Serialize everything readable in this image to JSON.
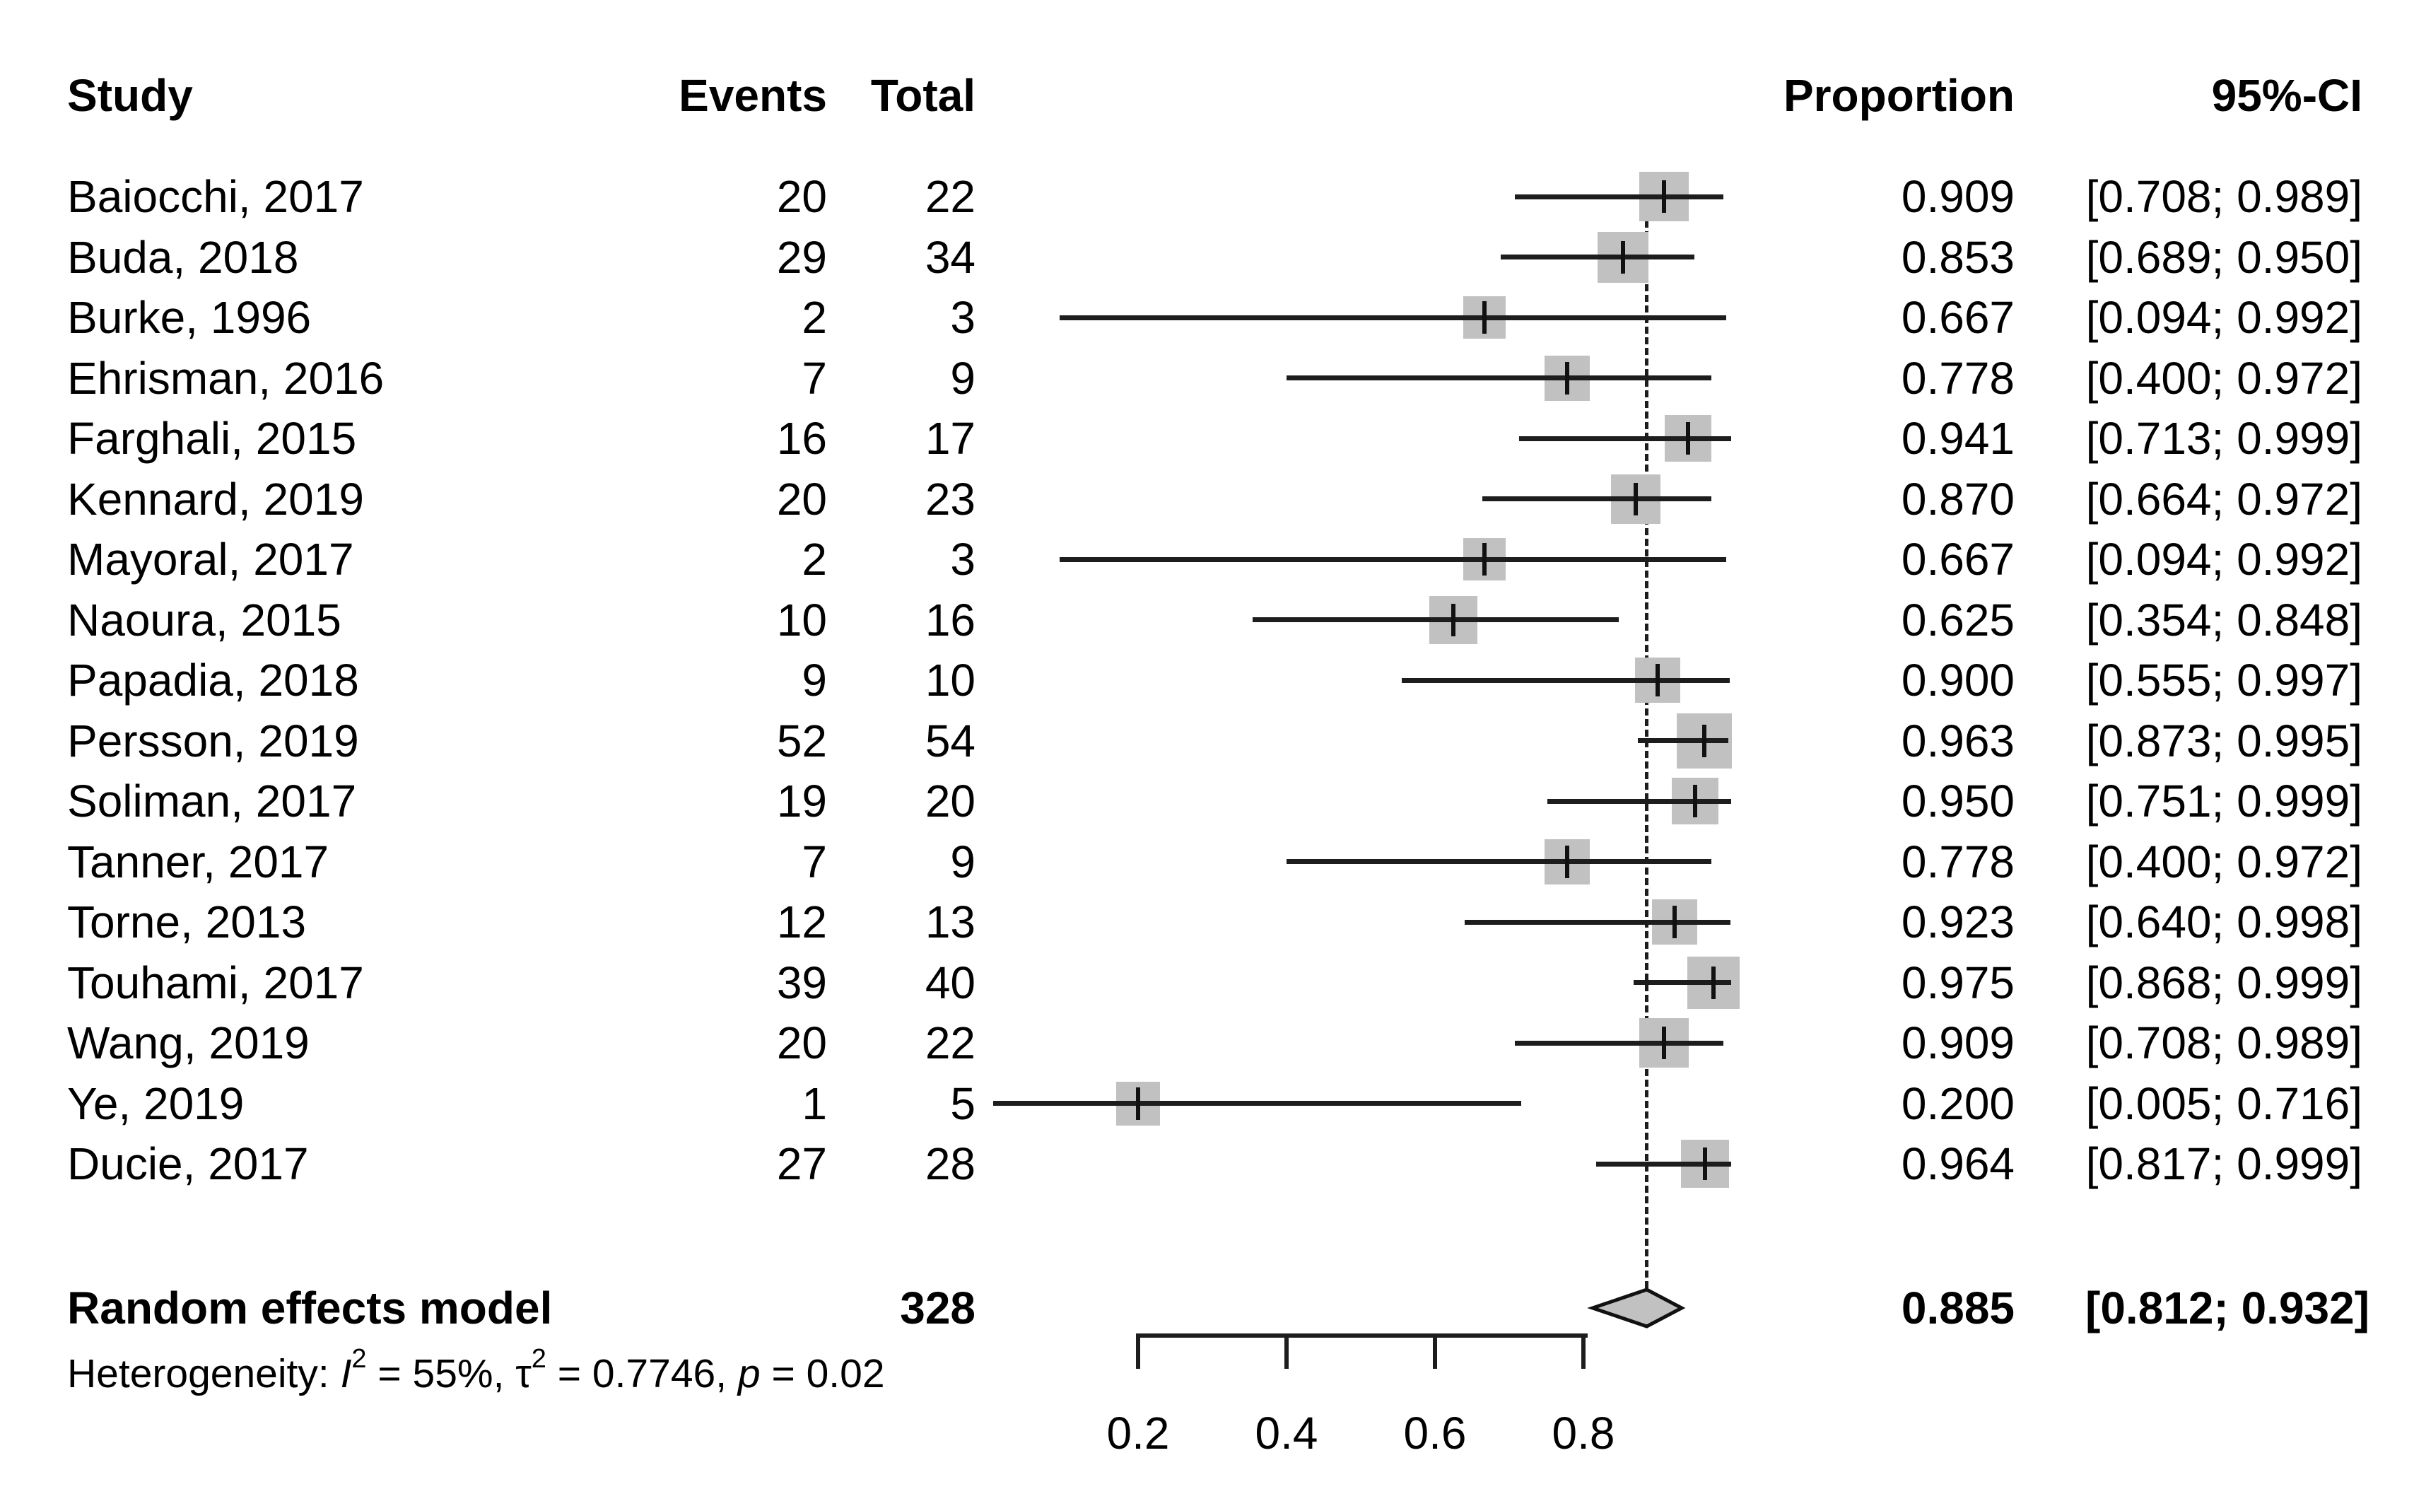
{
  "columns": {
    "study": "Study",
    "events": "Events",
    "total": "Total",
    "proportion": "Proportion",
    "ci": "95%-CI"
  },
  "heterogeneity": {
    "prefix": "Heterogeneity: ",
    "i_symbol": "I",
    "i_exp": "2",
    "i_value": " = 55%, ",
    "tau_symbol": "τ",
    "tau_exp": "2",
    "tau_value": " = 0.7746, ",
    "p_symbol": "p",
    "p_value": " = 0.02"
  },
  "chart_data": {
    "type": "forest",
    "title": "",
    "xlabel": "",
    "xlim": [
      0,
      1
    ],
    "axis": {
      "ticks": [
        0.2,
        0.4,
        0.6,
        0.8
      ],
      "labels": [
        "0.2",
        "0.4",
        "0.6",
        "0.8"
      ]
    },
    "reference_line": 0.885,
    "colors": {
      "marker_fill": "#c1c1c1",
      "line": "#1d1d1d",
      "diamond_fill": "#c1c1c1",
      "diamond_stroke": "#111111",
      "text": "#000000"
    },
    "studies": [
      {
        "name": "Baiocchi, 2017",
        "events": "20",
        "total": "22",
        "proportion": "0.909",
        "ci_text": "[0.708; 0.989]",
        "estimate": 0.909,
        "lower": 0.708,
        "upper": 0.989,
        "marker_px": 70
      },
      {
        "name": "Buda, 2018",
        "events": "29",
        "total": "34",
        "proportion": "0.853",
        "ci_text": "[0.689; 0.950]",
        "estimate": 0.853,
        "lower": 0.689,
        "upper": 0.95,
        "marker_px": 72
      },
      {
        "name": "Burke, 1996",
        "events": "2",
        "total": "3",
        "proportion": "0.667",
        "ci_text": "[0.094; 0.992]",
        "estimate": 0.667,
        "lower": 0.094,
        "upper": 0.992,
        "marker_px": 60
      },
      {
        "name": "Ehrisman, 2016",
        "events": "7",
        "total": "9",
        "proportion": "0.778",
        "ci_text": "[0.400; 0.972]",
        "estimate": 0.778,
        "lower": 0.4,
        "upper": 0.972,
        "marker_px": 64
      },
      {
        "name": "Farghali, 2015",
        "events": "16",
        "total": "17",
        "proportion": "0.941",
        "ci_text": "[0.713; 0.999]",
        "estimate": 0.941,
        "lower": 0.713,
        "upper": 0.999,
        "marker_px": 66
      },
      {
        "name": "Kennard, 2019",
        "events": "20",
        "total": "23",
        "proportion": "0.870",
        "ci_text": "[0.664; 0.972]",
        "estimate": 0.87,
        "lower": 0.664,
        "upper": 0.972,
        "marker_px": 70
      },
      {
        "name": "Mayoral, 2017",
        "events": "2",
        "total": "3",
        "proportion": "0.667",
        "ci_text": "[0.094; 0.992]",
        "estimate": 0.667,
        "lower": 0.094,
        "upper": 0.992,
        "marker_px": 60
      },
      {
        "name": "Naoura, 2015",
        "events": "10",
        "total": "16",
        "proportion": "0.625",
        "ci_text": "[0.354; 0.848]",
        "estimate": 0.625,
        "lower": 0.354,
        "upper": 0.848,
        "marker_px": 68
      },
      {
        "name": "Papadia, 2018",
        "events": "9",
        "total": "10",
        "proportion": "0.900",
        "ci_text": "[0.555; 0.997]",
        "estimate": 0.9,
        "lower": 0.555,
        "upper": 0.997,
        "marker_px": 64
      },
      {
        "name": "Persson, 2019",
        "events": "52",
        "total": "54",
        "proportion": "0.963",
        "ci_text": "[0.873; 0.995]",
        "estimate": 0.963,
        "lower": 0.873,
        "upper": 0.995,
        "marker_px": 78
      },
      {
        "name": "Soliman, 2017",
        "events": "19",
        "total": "20",
        "proportion": "0.950",
        "ci_text": "[0.751; 0.999]",
        "estimate": 0.95,
        "lower": 0.751,
        "upper": 0.999,
        "marker_px": 66
      },
      {
        "name": "Tanner, 2017",
        "events": "7",
        "total": "9",
        "proportion": "0.778",
        "ci_text": "[0.400; 0.972]",
        "estimate": 0.778,
        "lower": 0.4,
        "upper": 0.972,
        "marker_px": 64
      },
      {
        "name": "Torne, 2013",
        "events": "12",
        "total": "13",
        "proportion": "0.923",
        "ci_text": "[0.640; 0.998]",
        "estimate": 0.923,
        "lower": 0.64,
        "upper": 0.998,
        "marker_px": 64
      },
      {
        "name": "Touhami, 2017",
        "events": "39",
        "total": "40",
        "proportion": "0.975",
        "ci_text": "[0.868; 0.999]",
        "estimate": 0.975,
        "lower": 0.868,
        "upper": 0.999,
        "marker_px": 74
      },
      {
        "name": "Wang, 2019",
        "events": "20",
        "total": "22",
        "proportion": "0.909",
        "ci_text": "[0.708; 0.989]",
        "estimate": 0.909,
        "lower": 0.708,
        "upper": 0.989,
        "marker_px": 70
      },
      {
        "name": "Ye, 2019",
        "events": "1",
        "total": "5",
        "proportion": "0.200",
        "ci_text": "[0.005; 0.716]",
        "estimate": 0.2,
        "lower": 0.005,
        "upper": 0.716,
        "marker_px": 62
      },
      {
        "name": "Ducie, 2017",
        "events": "27",
        "total": "28",
        "proportion": "0.964",
        "ci_text": "[0.817; 0.999]",
        "estimate": 0.964,
        "lower": 0.817,
        "upper": 0.999,
        "marker_px": 68
      }
    ],
    "summary": {
      "label": "Random effects model",
      "total": "328",
      "proportion": "0.885",
      "ci_text": "[0.812; 0.932]",
      "estimate": 0.885,
      "lower": 0.812,
      "upper": 0.932
    },
    "heterogeneity_text": "Heterogeneity: I2 = 55%, τ2 = 0.7746, p = 0.02"
  }
}
